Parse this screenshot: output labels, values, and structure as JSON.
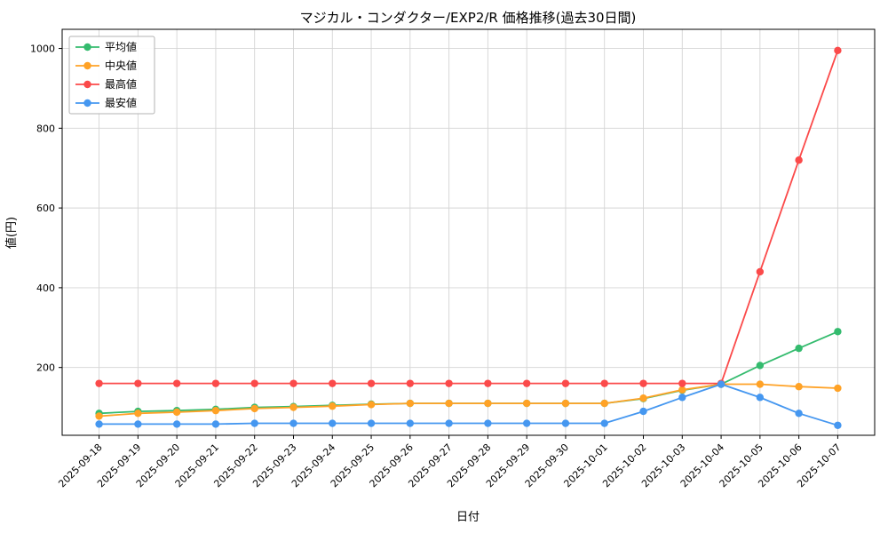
{
  "chart_data": {
    "type": "line",
    "title": "マジカル・コンダクター/EXP2/R 価格推移(過去30日間)",
    "xlabel": "日付",
    "ylabel": "値(円)",
    "categories": [
      "2025-09-18",
      "2025-09-19",
      "2025-09-20",
      "2025-09-21",
      "2025-09-22",
      "2025-09-23",
      "2025-09-24",
      "2025-09-25",
      "2025-09-26",
      "2025-09-27",
      "2025-09-28",
      "2025-09-29",
      "2025-09-30",
      "2025-10-01",
      "2025-10-02",
      "2025-10-03",
      "2025-10-04",
      "2025-10-05",
      "2025-10-06",
      "2025-10-07"
    ],
    "series": [
      {
        "name": "平均値",
        "color": "#34bb6e",
        "values": [
          85,
          90,
          92,
          95,
          100,
          102,
          105,
          108,
          110,
          110,
          110,
          110,
          110,
          110,
          122,
          143,
          158,
          205,
          248,
          290
        ]
      },
      {
        "name": "中央値",
        "color": "#ffa226",
        "values": [
          78,
          85,
          88,
          92,
          97,
          100,
          103,
          107,
          110,
          110,
          110,
          110,
          110,
          110,
          123,
          144,
          158,
          158,
          152,
          148
        ]
      },
      {
        "name": "最高値",
        "color": "#fb4a4a",
        "values": [
          160,
          160,
          160,
          160,
          160,
          160,
          160,
          160,
          160,
          160,
          160,
          160,
          160,
          160,
          160,
          160,
          160,
          440,
          720,
          995
        ]
      },
      {
        "name": "最安値",
        "color": "#4597f0",
        "values": [
          58,
          58,
          58,
          58,
          60,
          60,
          60,
          60,
          60,
          60,
          60,
          60,
          60,
          60,
          90,
          125,
          158,
          125,
          85,
          55
        ]
      }
    ],
    "yticks": [
      200,
      400,
      600,
      800,
      1000
    ],
    "ylim": [
      30,
      1048
    ],
    "grid": true,
    "legend_position": "upper left",
    "colors": {
      "grid": "#d4d4d4",
      "axis": "#000000",
      "background": "#ffffff",
      "legend_border": "#b3b3b3"
    }
  }
}
